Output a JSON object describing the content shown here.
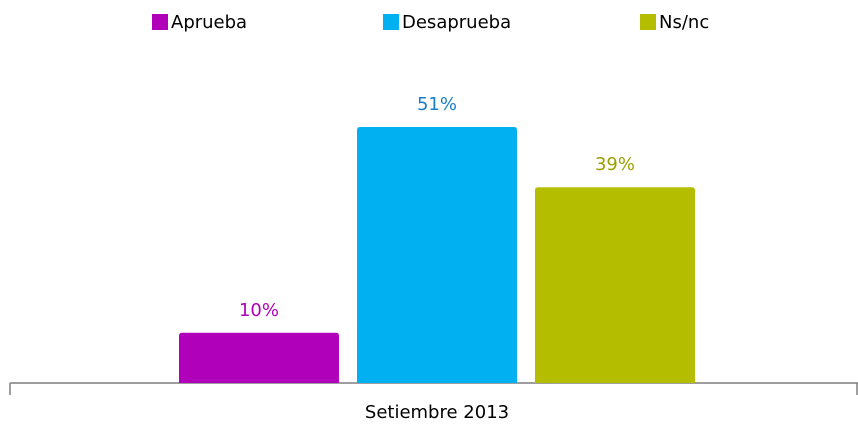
{
  "chart_data": {
    "type": "bar",
    "categories": [
      "Setiembre 2013"
    ],
    "series": [
      {
        "name": "Aprueba",
        "color": "#b000b9",
        "label_color": "#b000b9",
        "values": [
          10
        ],
        "value_labels": [
          "10%"
        ]
      },
      {
        "name": "Desaprueba",
        "color": "#00b0f0",
        "label_color": "#1a7dc6",
        "values": [
          51
        ],
        "value_labels": [
          "51%"
        ]
      },
      {
        "name": "Ns/nc",
        "color": "#b5bd00",
        "label_color": "#9ba000",
        "values": [
          39
        ],
        "value_labels": [
          "39%"
        ]
      }
    ],
    "legend": "top"
  }
}
